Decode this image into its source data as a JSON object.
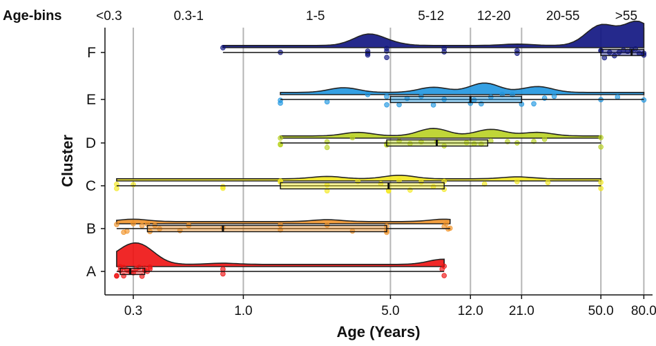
{
  "chart_data": {
    "type": "raincloud",
    "xlabel": "Age (Years)",
    "ylabel": "Cluster",
    "x_scale": "log",
    "xlim": [
      0.22,
      88
    ],
    "x_ticks": [
      0.3,
      1.0,
      5.0,
      12.0,
      21.0,
      50.0,
      80.0
    ],
    "x_tick_labels": [
      "0.3",
      "1.0",
      "5.0",
      "12.0",
      "21.0",
      "50.0",
      "80.0"
    ],
    "age_bins_title": "Age-bins",
    "age_bins": [
      {
        "label": "<0.3",
        "center": 0.23
      },
      {
        "label": "0.3-1",
        "center": 0.55
      },
      {
        "label": "1-5",
        "center": 2.2
      },
      {
        "label": "5-12",
        "center": 7.8
      },
      {
        "label": "12-20",
        "center": 15.5
      },
      {
        "label": "20-55",
        "center": 33
      },
      {
        "label": ">55",
        "center": 66
      }
    ],
    "series": [
      {
        "name": "A",
        "color": "#ee1111",
        "box": {
          "min": 0.25,
          "q1": 0.26,
          "median": 0.29,
          "q3": 0.34,
          "max": 9.0
        },
        "points": [
          0.25,
          0.25,
          0.26,
          0.26,
          0.27,
          0.27,
          0.28,
          0.29,
          0.3,
          0.31,
          0.32,
          0.33,
          0.34,
          0.34,
          0.35,
          0.36,
          0.36,
          0.8,
          0.8,
          8.8,
          9.0,
          9.0
        ],
        "density_peaks": [
          {
            "x": 0.27,
            "h": 0.45
          },
          {
            "x": 0.33,
            "h": 0.65
          },
          {
            "x": 0.8,
            "h": 0.05
          },
          {
            "x": 8.9,
            "h": 0.22
          }
        ]
      },
      {
        "name": "B",
        "color": "#f0932b",
        "box": {
          "min": 0.25,
          "q1": 0.35,
          "median": 0.8,
          "q3": 4.8,
          "max": 9.6
        },
        "points": [
          0.25,
          0.27,
          0.28,
          0.3,
          0.33,
          0.35,
          0.36,
          0.38,
          0.4,
          0.5,
          0.55,
          0.8,
          1.5,
          1.5,
          2.5,
          3.3,
          4.8,
          4.8,
          4.8,
          9.0,
          9.2,
          9.4,
          9.6
        ],
        "density_peaks": [
          {
            "x": 0.3,
            "h": 0.1
          },
          {
            "x": 2.5,
            "h": 0.08
          },
          {
            "x": 9.0,
            "h": 0.1
          }
        ]
      },
      {
        "name": "C",
        "color": "#f2e81f",
        "box": {
          "min": 0.25,
          "q1": 1.5,
          "median": 4.9,
          "q3": 9.0,
          "max": 50.0
        },
        "points": [
          0.25,
          0.25,
          0.3,
          0.8,
          0.8,
          1.5,
          1.5,
          2.5,
          2.5,
          3.5,
          4.5,
          4.9,
          4.9,
          5.5,
          6.2,
          7.0,
          8.0,
          9.0,
          9.0,
          14.0,
          20.0,
          28.0,
          50.0,
          50.0
        ],
        "density_peaks": [
          {
            "x": 2.5,
            "h": 0.1
          },
          {
            "x": 5.5,
            "h": 0.15
          },
          {
            "x": 20,
            "h": 0.08
          }
        ]
      },
      {
        "name": "D",
        "color": "#b9d222",
        "box": {
          "min": 1.5,
          "q1": 4.8,
          "median": 8.3,
          "q3": 14.5,
          "max": 50.0
        },
        "points": [
          1.5,
          1.5,
          1.5,
          2.5,
          2.5,
          3.3,
          4.8,
          4.8,
          5.5,
          6.2,
          7.0,
          8.3,
          9.0,
          11.5,
          12.5,
          13.5,
          15.0,
          18.0,
          20.0,
          24.0,
          27.0,
          50.0,
          50.0
        ],
        "density_peaks": [
          {
            "x": 3.5,
            "h": 0.15
          },
          {
            "x": 8,
            "h": 0.32
          },
          {
            "x": 15,
            "h": 0.28
          },
          {
            "x": 25,
            "h": 0.15
          }
        ]
      },
      {
        "name": "E",
        "color": "#1f96e0",
        "box": {
          "min": 1.5,
          "q1": 5.0,
          "median": 12.0,
          "q3": 21.0,
          "max": 80.0
        },
        "points": [
          1.5,
          1.5,
          2.5,
          3.9,
          4.8,
          4.8,
          5.5,
          6.0,
          7.0,
          8.0,
          9.0,
          12.0,
          12.5,
          13.5,
          15.0,
          17.0,
          19.0,
          21.0,
          24.0,
          27.0,
          30.0,
          50.0,
          60.0,
          80.0
        ],
        "density_peaks": [
          {
            "x": 3,
            "h": 0.2
          },
          {
            "x": 8,
            "h": 0.22
          },
          {
            "x": 14,
            "h": 0.4
          },
          {
            "x": 25,
            "h": 0.25
          }
        ]
      },
      {
        "name": "F",
        "color": "#0d1280",
        "box": {
          "min": 0.8,
          "q1": 50.0,
          "median": 70.0,
          "q3": 80.0,
          "max": 80.0
        },
        "points": [
          0.8,
          1.5,
          3.9,
          3.9,
          3.9,
          4.8,
          4.8,
          4.8,
          9.0,
          9.0,
          20.0,
          20.0,
          50.0,
          50.0,
          52.0,
          55.0,
          58.0,
          61.0,
          64.0,
          67.0,
          70.0,
          73.0,
          76.0,
          80.0,
          80.0
        ],
        "density_peaks": [
          {
            "x": 3.9,
            "h": 0.45
          },
          {
            "x": 4.9,
            "h": 0.1
          },
          {
            "x": 20,
            "h": 0.06
          },
          {
            "x": 50,
            "h": 0.85
          },
          {
            "x": 75,
            "h": 1.0
          }
        ]
      }
    ]
  }
}
